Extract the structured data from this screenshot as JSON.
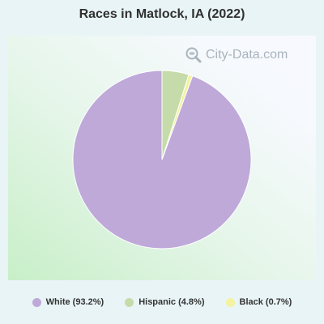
{
  "title": "Races in Matlock, IA (2022)",
  "watermark": {
    "text": "City-Data.com",
    "icon": "magnifier-globe-icon"
  },
  "chart_data": {
    "type": "pie",
    "title": "Races in Matlock, IA (2022)",
    "slices": [
      {
        "label": "White (93.2%)",
        "value": 93.2,
        "color": "#bea9d9"
      },
      {
        "label": "Hispanic (4.8%)",
        "value": 4.8,
        "color": "#c5dba9"
      },
      {
        "label": "Black (0.7%)",
        "value": 0.7,
        "color": "#f3f2a0"
      }
    ],
    "legend_position": "bottom"
  }
}
